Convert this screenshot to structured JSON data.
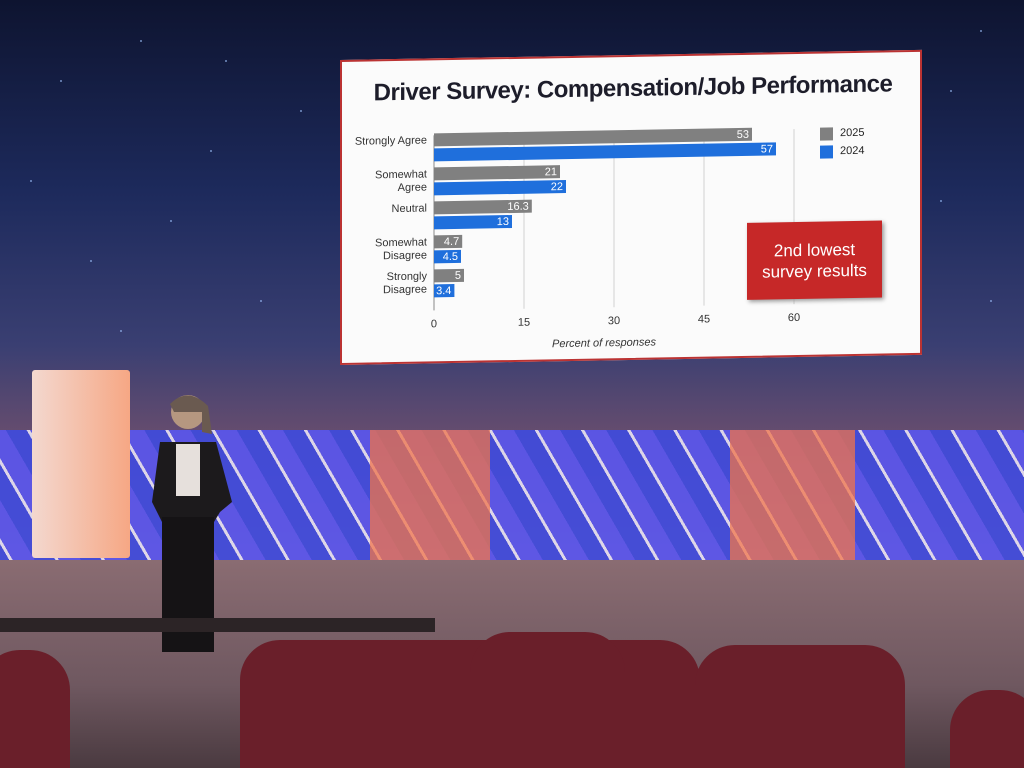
{
  "chart_data": {
    "type": "bar",
    "orientation": "horizontal",
    "title": "Driver Survey: Compensation/Job Performance",
    "categories": [
      "Strongly Agree",
      "Somewhat Agree",
      "Neutral",
      "Somewhat Disagree",
      "Strongly Disagree"
    ],
    "series": [
      {
        "name": "2025",
        "color": "#808080",
        "values": [
          53,
          21,
          16.3,
          4.7,
          5
        ]
      },
      {
        "name": "2024",
        "color": "#1f6fdc",
        "values": [
          57,
          22,
          13,
          4.5,
          3.4
        ]
      }
    ],
    "xlim": [
      0,
      60
    ],
    "xticks": [
      0,
      15,
      30,
      45,
      60
    ],
    "grid": true,
    "x_label": "Percent of responses",
    "annotation": "2nd lowest survey results",
    "legend": "right"
  }
}
